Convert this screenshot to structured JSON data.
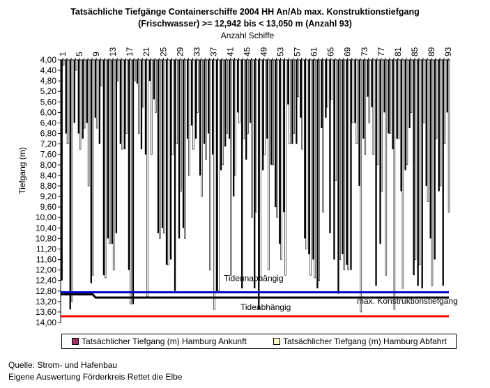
{
  "title_line1": "Tatsächliche Tiefgänge Containerschiffe 2004 HH An/Ab max. Konstruktionstiefgang",
  "title_line2": "(Frischwasser) >= 12,942 bis < 13,050 m (Anzahl 93)",
  "colors": {
    "arrival": "#993366",
    "departure": "#ffffc8",
    "bars": "#000000",
    "blue_line": "#0000cc",
    "red_line": "#ff0000",
    "black_line": "#000000"
  },
  "chart_data": {
    "type": "bar",
    "title": "Tatsächliche Tiefgänge Containerschiffe 2004 HH An/Ab max. Konstruktionstiefgang (Frischwasser) >= 12,942 bis < 13,050 m (Anzahl 93)",
    "xlabel": "Anzahl Schiffe",
    "ylabel": "Tiefgang (m)",
    "x_axis_position": "top",
    "y_inverted": true,
    "ylim": [
      4.0,
      14.0
    ],
    "y_ticks": [
      "4,00",
      "4,40",
      "4,80",
      "5,20",
      "5,60",
      "6,00",
      "6,40",
      "6,80",
      "7,20",
      "7,60",
      "8,00",
      "8,40",
      "8,80",
      "9,20",
      "9,60",
      "10,00",
      "10,40",
      "10,80",
      "11,20",
      "11,60",
      "12,00",
      "12,40",
      "12,80",
      "13,20",
      "13,60",
      "14,00"
    ],
    "x_ticks": [
      "1",
      "5",
      "9",
      "13",
      "17",
      "21",
      "25",
      "29",
      "33",
      "37",
      "41",
      "45",
      "49",
      "53",
      "57",
      "61",
      "65",
      "69",
      "73",
      "77",
      "81",
      "85",
      "89",
      "93"
    ],
    "categories": [
      1,
      2,
      3,
      4,
      5,
      6,
      7,
      8,
      9,
      10,
      11,
      12,
      13,
      14,
      15,
      16,
      17,
      18,
      19,
      20,
      21,
      22,
      23,
      24,
      25,
      26,
      27,
      28,
      29,
      30,
      31,
      32,
      33,
      34,
      35,
      36,
      37,
      38,
      39,
      40,
      41,
      42,
      43,
      44,
      45,
      46,
      47,
      48,
      49,
      50,
      51,
      52,
      53,
      54,
      55,
      56,
      57,
      58,
      59,
      60,
      61,
      62,
      63,
      64,
      65,
      66,
      67,
      68,
      69,
      70,
      71,
      72,
      73,
      74,
      75,
      76,
      77,
      78,
      79,
      80,
      81,
      82,
      83,
      84,
      85,
      86,
      87,
      88,
      89,
      90,
      91,
      92,
      93
    ],
    "series": [
      {
        "name": "Tatsächlicher Tiefgang (m) Hamburg Ankunft",
        "values": [
          12.4,
          6.8,
          13.5,
          6.4,
          6.8,
          7.0,
          6.4,
          12.5,
          6.2,
          7.2,
          12.2,
          10.8,
          11.0,
          10.6,
          7.2,
          7.4,
          12.0,
          13.3,
          4.9,
          7.4,
          7.6,
          4.8,
          5.5,
          10.6,
          10.4,
          11.8,
          11.6,
          12.8,
          10.8,
          10.4,
          7.0,
          6.5,
          7.0,
          8.4,
          7.2,
          6.8,
          7.6,
          12.8,
          8.2,
          7.3,
          7.0,
          9.2,
          6.0,
          12.7,
          7.8,
          6.4,
          12.7,
          13.5,
          8.2,
          7.0,
          8.0,
          9.6,
          11.0,
          9.8,
          5.7,
          7.2,
          7.2,
          6.2,
          10.8,
          11.4,
          11.6,
          12.7,
          6.6,
          6.2,
          10.6,
          11.6,
          12.9,
          11.4,
          11.8,
          12.0,
          6.4,
          8.8,
          7.0,
          5.4,
          5.8,
          12.6,
          11.0,
          6.0,
          6.8,
          7.4,
          7.0,
          9.0,
          8.2,
          6.6,
          12.2,
          12.6,
          12.7,
          8.8,
          10.8,
          11.6,
          9.0,
          12.6,
          6.0
        ]
      },
      {
        "name": "Tatsächlicher Tiefgang (m) Hamburg Abfahrt",
        "values": [
          4.2,
          7.2,
          13.2,
          4.4,
          7.4,
          6.6,
          8.8,
          12.2,
          6.6,
          5.0,
          12.3,
          11.0,
          12.0,
          4.8,
          7.4,
          6.8,
          13.3,
          4.8,
          6.8,
          5.8,
          13.0,
          7.6,
          6.0,
          10.8,
          10.6,
          11.8,
          7.6,
          7.2,
          9.0,
          10.8,
          8.4,
          7.4,
          6.0,
          9.2,
          7.8,
          12.0,
          13.5,
          12.8,
          8.0,
          6.8,
          12.2,
          8.4,
          6.4,
          7.0,
          6.8,
          10.0,
          9.8,
          12.4,
          7.6,
          12.0,
          8.0,
          10.0,
          11.6,
          12.2,
          7.2,
          6.8,
          5.4,
          7.4,
          11.2,
          12.2,
          12.3,
          12.4,
          9.8,
          5.8,
          5.5,
          8.6,
          11.6,
          12.0,
          12.0,
          6.4,
          7.2,
          13.6,
          7.6,
          6.4,
          7.6,
          8.0,
          9.0,
          12.2,
          6.8,
          13.5,
          7.0,
          12.7,
          8.0,
          6.0,
          11.6,
          11.8,
          6.4,
          9.4,
          12.6,
          7.0,
          8.8,
          7.2,
          9.8
        ]
      }
    ],
    "reference_lines": [
      {
        "value": 12.85,
        "color": "#0000cc"
      },
      {
        "value": 13.76,
        "color": "#ff0000"
      },
      {
        "label": "max. Konstruktionstiefgang",
        "start_value": 12.93,
        "end_value": 13.05,
        "color": "#000000"
      }
    ],
    "annotations": [
      "Tideunabhängig",
      "Tideabhängig",
      "max. Konstruktionstiefgang"
    ],
    "legend_position": "bottom",
    "grid": false
  },
  "legend": {
    "arrival": "Tatsächlicher Tiefgang (m) Hamburg Ankunft",
    "departure": "Tatsächlicher Tiefgang (m) Hamburg Abfahrt"
  },
  "annotations": {
    "tideunabhaengig": "Tideunabhängig",
    "tideabhaengig": "Tideabhängig",
    "max_konstruktion": "max. Konstruktionstiefgang"
  },
  "footer": {
    "line1": "Quelle: Strom- und Hafenbau",
    "line2": "Eigene Auswertung Förderkreis Rettet die Elbe"
  }
}
